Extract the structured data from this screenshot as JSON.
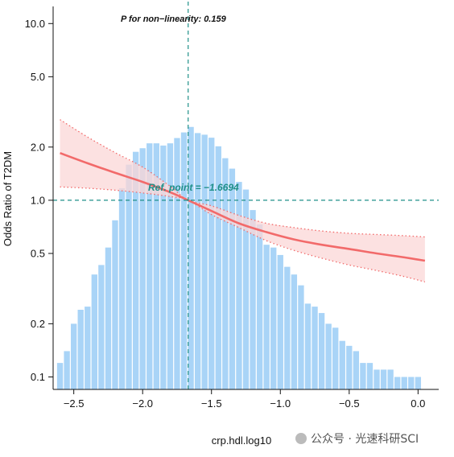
{
  "chart_data": {
    "type": "line",
    "title": "",
    "xlabel": "crp.hdl.log10",
    "ylabel": "Odds Ratio of T2DM",
    "xlim": [
      -2.65,
      0.15
    ],
    "ylim": [
      0.085,
      12.5
    ],
    "y_scale": "log",
    "x_ticks": [
      -2.5,
      -2.0,
      -1.5,
      -1.0,
      -0.5,
      0.0
    ],
    "x_tick_labels": [
      "−2.5",
      "−2.0",
      "−1.5",
      "−1.0",
      "−0.5",
      "0.0"
    ],
    "y_ticks": [
      0.1,
      0.2,
      0.5,
      1.0,
      2.0,
      5.0,
      10.0
    ],
    "y_tick_labels": [
      "0.1",
      "0.2",
      "0.5",
      "1.0",
      "2.0",
      "5.0",
      "10.0"
    ],
    "annotation_p": "P for non−linearity: 0.159",
    "annotation_ref": "Ref. point = −1.6694",
    "ref_x": -1.6694,
    "ref_y": 1.0,
    "series": [
      {
        "type": "line",
        "x": [
          -2.6,
          -2.4,
          -2.2,
          -2.0,
          -1.8,
          -1.6694,
          -1.5,
          -1.3,
          -1.1,
          -0.9,
          -0.7,
          -0.5,
          -0.3,
          -0.1,
          0.05
        ],
        "values": [
          1.85,
          1.62,
          1.43,
          1.27,
          1.11,
          1.0,
          0.87,
          0.74,
          0.66,
          0.6,
          0.56,
          0.53,
          0.5,
          0.475,
          0.455
        ],
        "lower": [
          1.19,
          1.17,
          1.14,
          1.1,
          1.05,
          1.0,
          0.83,
          0.7,
          0.59,
          0.52,
          0.47,
          0.43,
          0.4,
          0.37,
          0.345
        ],
        "upper": [
          2.86,
          2.28,
          1.86,
          1.54,
          1.2,
          1.0,
          0.93,
          0.82,
          0.74,
          0.7,
          0.67,
          0.65,
          0.64,
          0.63,
          0.62
        ],
        "color": "#f26a6a",
        "band_color": "#fbd7d7"
      },
      {
        "type": "histogram",
        "color": "#a9d4f7",
        "x": [
          -2.6,
          -2.55,
          -2.5,
          -2.45,
          -2.4,
          -2.35,
          -2.3,
          -2.25,
          -2.2,
          -2.15,
          -2.1,
          -2.05,
          -2.0,
          -1.95,
          -1.9,
          -1.85,
          -1.8,
          -1.75,
          -1.7,
          -1.65,
          -1.6,
          -1.55,
          -1.5,
          -1.45,
          -1.4,
          -1.35,
          -1.3,
          -1.25,
          -1.2,
          -1.15,
          -1.1,
          -1.05,
          -1.0,
          -0.95,
          -0.9,
          -0.85,
          -0.8,
          -0.75,
          -0.7,
          -0.65,
          -0.6,
          -0.55,
          -0.5,
          -0.45,
          -0.4,
          -0.35,
          -0.3,
          -0.25,
          -0.2,
          -0.15,
          -0.1,
          -0.05,
          0.0
        ],
        "values": [
          0.12,
          0.14,
          0.2,
          0.24,
          0.25,
          0.38,
          0.43,
          0.54,
          0.77,
          1.17,
          1.59,
          1.88,
          1.97,
          2.1,
          2.1,
          2.04,
          2.1,
          2.25,
          2.42,
          2.6,
          2.4,
          2.35,
          2.26,
          2.02,
          1.73,
          1.51,
          1.27,
          1.15,
          0.88,
          0.73,
          0.56,
          0.54,
          0.49,
          0.42,
          0.38,
          0.33,
          0.26,
          0.25,
          0.23,
          0.2,
          0.19,
          0.16,
          0.15,
          0.14,
          0.12,
          0.12,
          0.11,
          0.11,
          0.11,
          0.1,
          0.1,
          0.1,
          0.1
        ]
      }
    ]
  },
  "watermark": "公众号 · 光速科研SCI"
}
